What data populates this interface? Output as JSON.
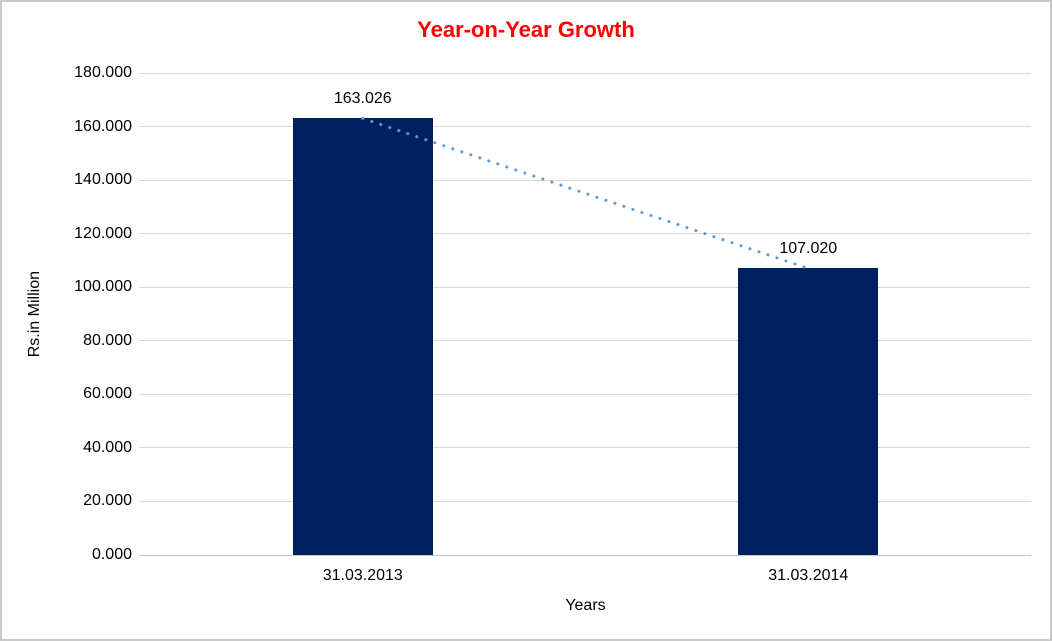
{
  "window": {
    "background_color": "#FFFFFF",
    "border_color": "#C9C9C9"
  },
  "chart_data": {
    "type": "bar",
    "title": "Year-on-Year Growth",
    "title_color": "#FF0000",
    "xlabel": "Years",
    "ylabel": "Rs.in Million",
    "categories": [
      "31.03.2013",
      "31.03.2014"
    ],
    "values": [
      163026,
      107020
    ],
    "value_labels": [
      "163.026",
      "107.020"
    ],
    "ylim": [
      0,
      180000
    ],
    "ytick_step": 20000,
    "ytick_labels": [
      "0.000",
      "20.000",
      "40.000",
      "60.000",
      "80.000",
      "100.000",
      "120.000",
      "140.000",
      "160.000",
      "180.000"
    ],
    "bar_color": "#002060",
    "trendline": {
      "style": "dotted",
      "color": "#5B9BD5",
      "connects": "bar tops"
    },
    "gridline_color": "#D9D9D9",
    "grid": "horizontal",
    "legend_position": "none",
    "text_color": "#000000"
  }
}
